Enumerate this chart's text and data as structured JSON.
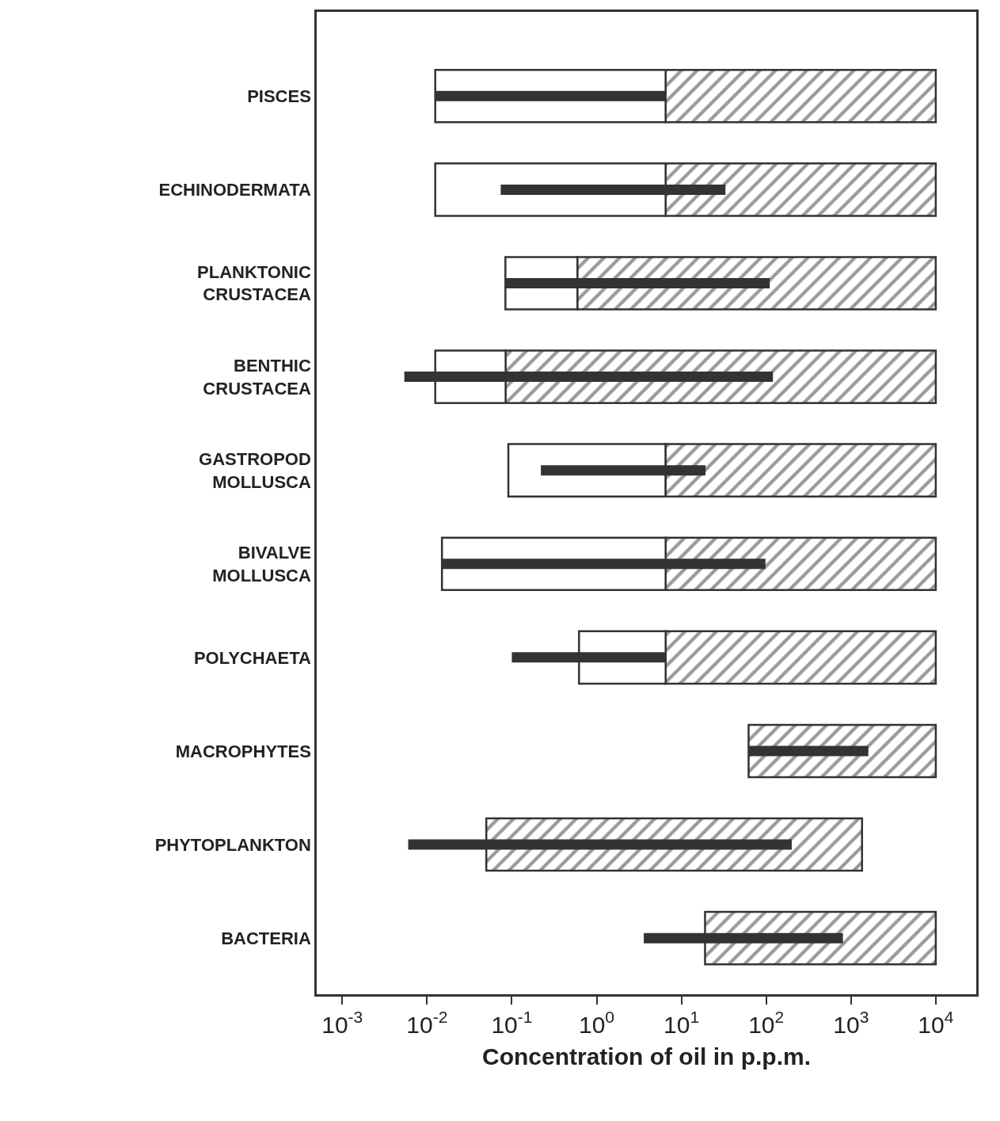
{
  "chart_data": {
    "type": "bar",
    "orientation": "horizontal",
    "log": "x",
    "xlabel": "Concentration of oil in p.p.m.",
    "categories": [
      "PISCES",
      "ECHINODERMATA",
      "PLANKTONIC\nCRUSTACEA",
      "BENTHIC\nCRUSTACEA",
      "GASTROPOD\nMOLLUSCA",
      "BIVALVE\nMOLLUSCA",
      "POLYCHAETA",
      "MACROPHYTES",
      "PHYTOPLANKTON",
      "BACTERIA"
    ],
    "series": [
      {
        "color": "#333333",
        "base": [
          6.5,
          6.5,
          0.59,
          0.084,
          6.5,
          6.5,
          6.5,
          62,
          0.05,
          19
        ],
        "values": [
          9990,
          9990,
          9990,
          10000,
          9990,
          9990,
          9990,
          9940,
          1350,
          9980
        ]
      },
      {
        "color": "#ffffff",
        "base": [
          0.0125,
          0.0125,
          0.084,
          0.0125,
          0.091,
          0.015,
          0.62,
          null,
          null,
          null
        ],
        "values": [
          6.5,
          6.5,
          0.51,
          0.072,
          6.4,
          6.5,
          5.9,
          null,
          null,
          null
        ]
      },
      {
        "color": "#333333",
        "base": [
          0.0125,
          0.074,
          0.084,
          0.0054,
          0.22,
          0.015,
          0.1,
          62,
          0.006,
          3.6
        ],
        "values": [
          6.5,
          33,
          110,
          120,
          19,
          98,
          6.4,
          1540,
          200,
          800
        ]
      }
    ],
    "xlim": [
      0.0005,
      30000
    ],
    "xticks": [
      {
        "value": 0.001,
        "label": "10$^{-3}$"
      },
      {
        "value": 0.01,
        "label": "10$^{-2}$"
      },
      {
        "value": 0.1,
        "label": "10$^{-1}$"
      },
      {
        "value": 1,
        "label": "10$^{0}$"
      },
      {
        "value": 10,
        "label": "10$^{1}$"
      },
      {
        "value": 100,
        "label": "10$^{2}$"
      },
      {
        "value": 1000,
        "label": "10$^{3}$"
      },
      {
        "value": 10000,
        "label": "10$^{4}$"
      }
    ]
  }
}
